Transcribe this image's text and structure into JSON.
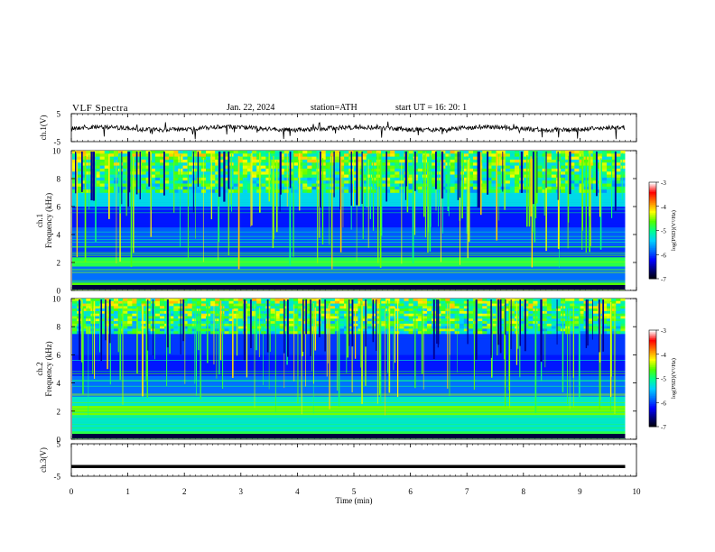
{
  "header": {
    "title": "VLF  Spectra",
    "date": "Jan. 22, 2024",
    "station": "station=ATH",
    "start": "start  UT  =   16: 20: 1"
  },
  "chart_data": [
    {
      "type": "line",
      "name": "ch1-waveform",
      "ylabel": "ch.1(V)",
      "yticks": [
        "5",
        "-5"
      ],
      "ylim": [
        -5,
        5
      ],
      "xlim": [
        0,
        10
      ],
      "note_values": "noisy signal centered near 0 V, spikes to about -2.5 V, data ends near 9.8 min"
    },
    {
      "type": "heatmap",
      "name": "ch1-spectrogram",
      "ylabel_line1": "ch.1",
      "ylabel_line2": "Frequency (kHz)",
      "yticks": [
        "10",
        "8",
        "6",
        "4",
        "2",
        "0"
      ],
      "ylim": [
        0,
        10
      ],
      "xlim": [
        0,
        10
      ],
      "colorbar": {
        "label": "log(PSD)(V²/Hz)",
        "ticks": [
          "-3",
          "-4",
          "-5",
          "-6",
          "-7"
        ],
        "range": [
          -7,
          -3
        ]
      }
    },
    {
      "type": "heatmap",
      "name": "ch2-spectrogram",
      "ylabel_line1": "ch.2",
      "ylabel_line2": "Frequency (kHz)",
      "yticks": [
        "10",
        "8",
        "6",
        "4",
        "2",
        "0"
      ],
      "ylim": [
        0,
        10
      ],
      "xlim": [
        0,
        10
      ],
      "colorbar": {
        "label": "log(PSD)(V²/Hz)",
        "ticks": [
          "-3",
          "-4",
          "-5",
          "-6",
          "-7"
        ],
        "range": [
          -7,
          -3
        ]
      }
    },
    {
      "type": "line",
      "name": "ch3-waveform",
      "ylabel": "ch.3(V)",
      "yticks": [
        "5",
        "-5"
      ],
      "ylim": [
        -5,
        5
      ],
      "xlim": [
        0,
        10
      ],
      "note_values": "flat line near -2 V"
    }
  ],
  "xaxis": {
    "label": "Time  (min)",
    "ticks": [
      "0",
      "1",
      "2",
      "3",
      "4",
      "5",
      "6",
      "7",
      "8",
      "9",
      "10"
    ]
  },
  "colors": {
    "background": "#ffffff",
    "colormap": [
      "#000000",
      "#00007a",
      "#0000ff",
      "#0070ff",
      "#00d0ff",
      "#00ff90",
      "#50ff00",
      "#ffff00",
      "#ff8000",
      "#ff0000",
      "#ffffff"
    ]
  }
}
